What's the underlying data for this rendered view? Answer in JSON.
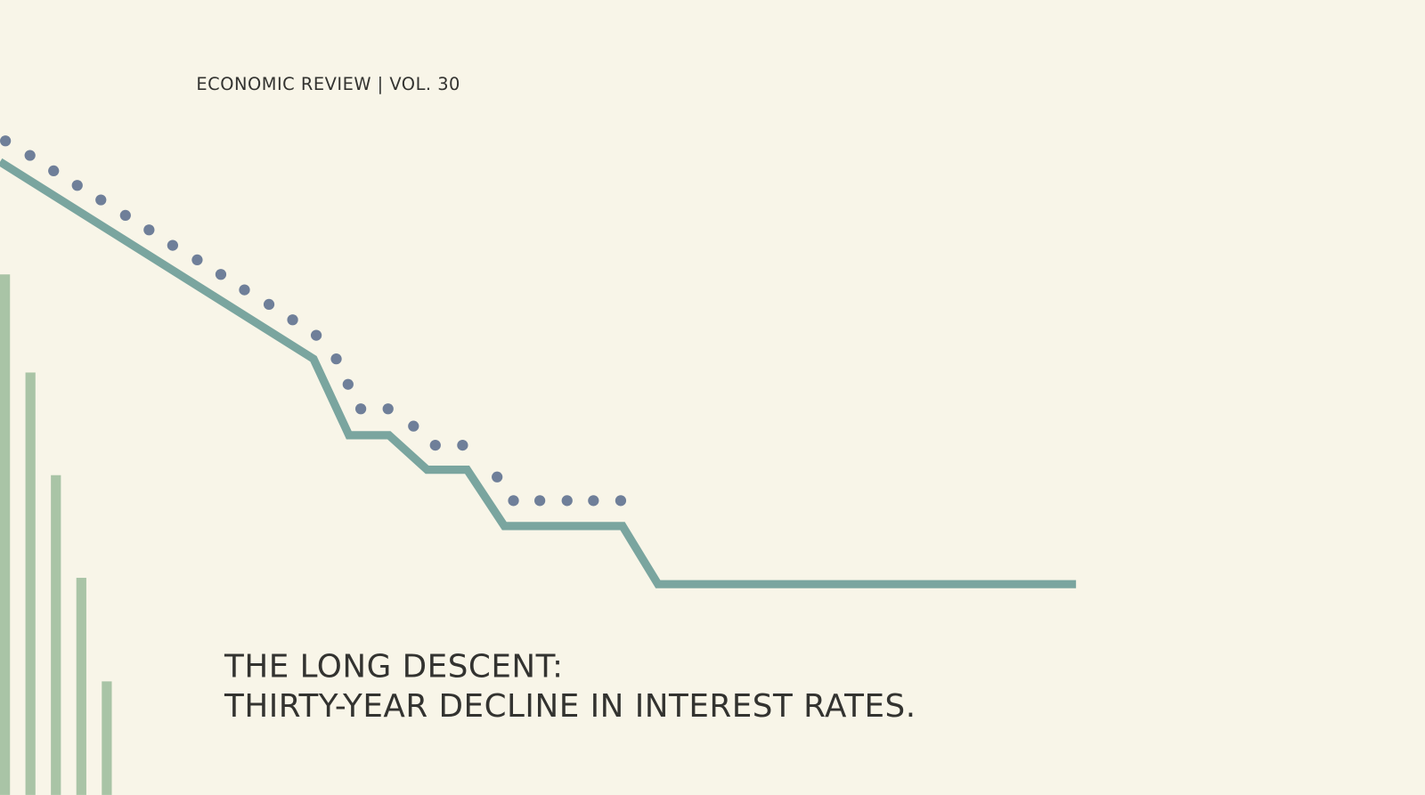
{
  "header": {
    "kicker": "ECONOMIC REVIEW | VOL. 30"
  },
  "title": {
    "lines": [
      "THE LONG DESCENT:",
      "THIRTY-YEAR DECLINE IN INTEREST RATES."
    ]
  }
}
